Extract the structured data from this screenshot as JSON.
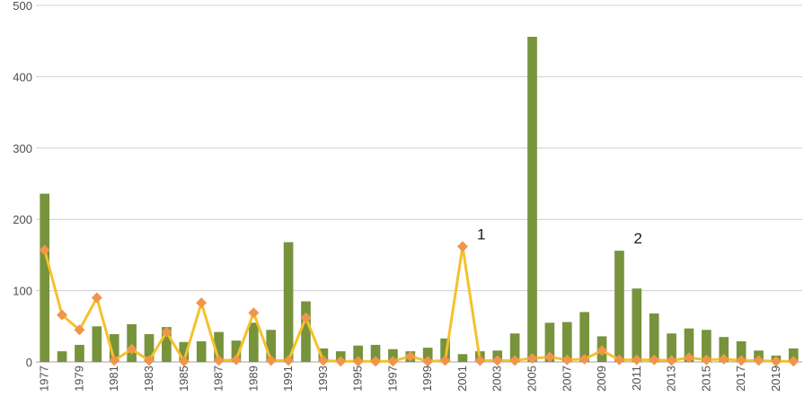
{
  "chart_data": {
    "type": "bar",
    "title": "",
    "xlabel": "",
    "ylabel": "",
    "ylim": [
      0,
      500
    ],
    "yticks": [
      0,
      100,
      200,
      300,
      400,
      500
    ],
    "grid": true,
    "legend": "none",
    "categories": [
      "1977",
      "1978",
      "1979",
      "1980",
      "1981",
      "1982",
      "1983",
      "1984",
      "1985",
      "1986",
      "1987",
      "1988",
      "1989",
      "1990",
      "1991",
      "1992",
      "1993",
      "1994",
      "1995",
      "1996",
      "1997",
      "1998",
      "1999",
      "2000",
      "2001",
      "2002",
      "2003",
      "2004",
      "2005",
      "2006",
      "2007",
      "2008",
      "2009",
      "2010",
      "2011",
      "2012",
      "2013",
      "2014",
      "2015",
      "2016",
      "2017",
      "2018",
      "2019",
      "2020"
    ],
    "tick_labels": [
      "1977",
      "1979",
      "1981",
      "1983",
      "1985",
      "1987",
      "1989",
      "1991",
      "1993",
      "1995",
      "1997",
      "1999",
      "2001",
      "2003",
      "2005",
      "2007",
      "2009",
      "2011",
      "2013",
      "2015",
      "2017",
      "2019"
    ],
    "series": [
      {
        "kind": "bar",
        "color": "#77933c",
        "values": [
          236,
          15,
          24,
          50,
          39,
          53,
          39,
          49,
          28,
          29,
          42,
          30,
          55,
          45,
          168,
          85,
          19,
          15,
          23,
          24,
          18,
          15,
          20,
          33,
          11,
          15,
          16,
          40,
          456,
          55,
          56,
          70,
          36,
          156,
          103,
          68,
          40,
          47,
          45,
          35,
          29,
          16,
          9,
          19
        ]
      },
      {
        "kind": "line",
        "color": "#f5c12b",
        "marker_color": "#f0964a",
        "values": [
          157,
          66,
          45,
          90,
          2,
          18,
          2,
          42,
          1,
          83,
          2,
          3,
          69,
          2,
          2,
          62,
          2,
          1,
          1,
          1,
          1,
          8,
          1,
          2,
          162,
          2,
          2,
          2,
          5,
          7,
          3,
          4,
          16,
          3,
          3,
          3,
          2,
          6,
          3,
          4,
          2,
          2,
          1,
          1
        ]
      }
    ],
    "annotations": [
      {
        "text": "1",
        "x": "2001",
        "y": 162
      },
      {
        "text": "2",
        "x": "2010",
        "y": 156
      }
    ]
  }
}
